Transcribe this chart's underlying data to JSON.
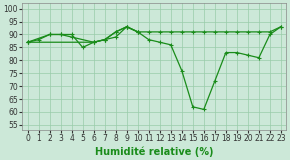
{
  "background_color": "#cce8d8",
  "grid_color": "#99ccaa",
  "line_color": "#1a8c1a",
  "xlabel": "Humidité relative (%)",
  "xlabel_fontsize": 7,
  "yticks": [
    55,
    60,
    65,
    70,
    75,
    80,
    85,
    90,
    95,
    100
  ],
  "xticks": [
    0,
    1,
    2,
    3,
    4,
    5,
    6,
    7,
    8,
    9,
    10,
    11,
    12,
    13,
    14,
    15,
    16,
    17,
    18,
    19,
    20,
    21,
    22,
    23
  ],
  "ylim": [
    53,
    102
  ],
  "xlim": [
    -0.5,
    23.5
  ],
  "tick_fontsize": 5.5,
  "line1_x": [
    0,
    1,
    2,
    3,
    4,
    5,
    6,
    7,
    8,
    9,
    10,
    11,
    12,
    13,
    14,
    15,
    16,
    17,
    18,
    19,
    20,
    21,
    22,
    23
  ],
  "line1_y": [
    87,
    88,
    90,
    90,
    90,
    85,
    87,
    88,
    89,
    93,
    91,
    88,
    87,
    86,
    76,
    62,
    61,
    72,
    83,
    83,
    82,
    81,
    90,
    93
  ],
  "line2_x": [
    0,
    2,
    3,
    4,
    6,
    7,
    8,
    9,
    10
  ],
  "line2_y": [
    87,
    90,
    90,
    89,
    87,
    88,
    91,
    93,
    91
  ],
  "line3_x": [
    0,
    6,
    7,
    8,
    9,
    10,
    11,
    12,
    13,
    14,
    15,
    16,
    17,
    18,
    19,
    20,
    21,
    22,
    23
  ],
  "line3_y": [
    87,
    87,
    88,
    91,
    93,
    91,
    91,
    91,
    91,
    91,
    91,
    91,
    91,
    91,
    91,
    91,
    91,
    91,
    93
  ]
}
